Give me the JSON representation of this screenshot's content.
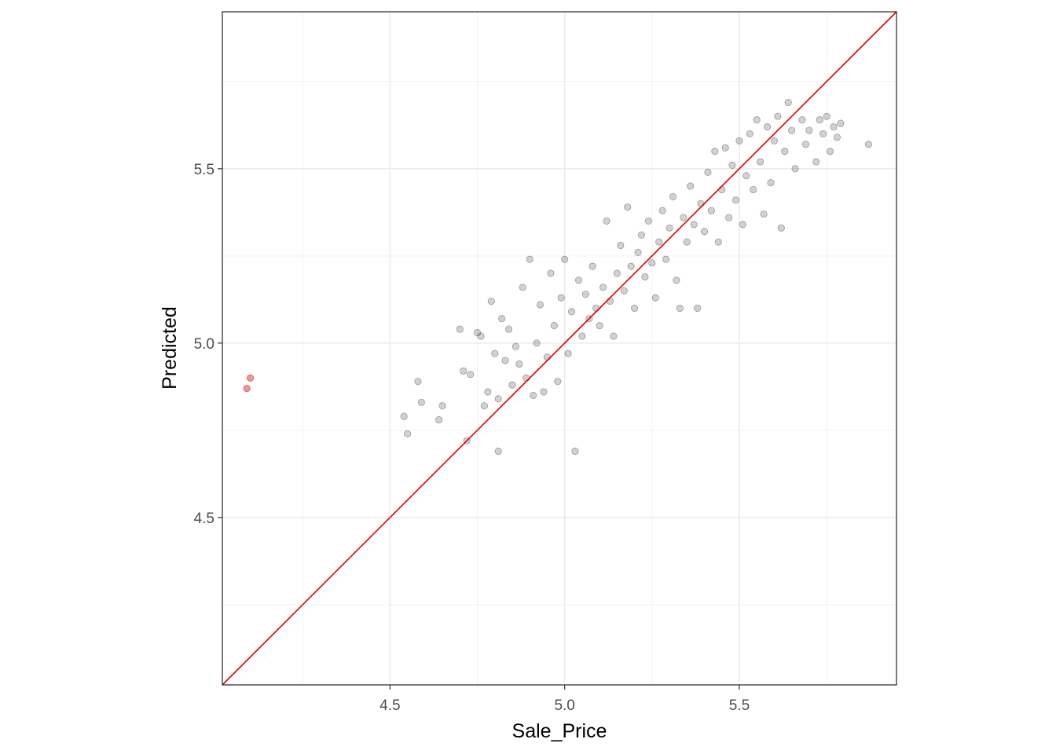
{
  "chart_data": {
    "type": "scatter",
    "title": "",
    "xlabel": "Sale_Price",
    "ylabel": "Predicted",
    "xlim": [
      4.02,
      5.95
    ],
    "ylim": [
      4.02,
      5.95
    ],
    "x_ticks": [
      4.5,
      5.0,
      5.5
    ],
    "x_tick_labels": [
      "4.5",
      "5.0",
      "5.5"
    ],
    "y_ticks": [
      4.5,
      5.0,
      5.5
    ],
    "y_tick_labels": [
      "4.5",
      "5.0",
      "5.5"
    ],
    "minor_grid": [
      4.25,
      4.75,
      5.25,
      5.75
    ],
    "grid": true,
    "legend": "none",
    "reference_line": {
      "from": [
        4.02,
        4.02
      ],
      "to": [
        5.95,
        5.95
      ],
      "color": "#e00000"
    },
    "series": [
      {
        "color": "#000000",
        "opacity": 0.18,
        "points": [
          [
            4.54,
            4.79
          ],
          [
            4.55,
            4.74
          ],
          [
            4.58,
            4.89
          ],
          [
            4.59,
            4.83
          ],
          [
            4.64,
            4.78
          ],
          [
            4.65,
            4.82
          ],
          [
            4.7,
            5.04
          ],
          [
            4.71,
            4.92
          ],
          [
            4.72,
            4.72
          ],
          [
            4.73,
            4.91
          ],
          [
            4.75,
            5.03
          ],
          [
            4.76,
            5.02
          ],
          [
            4.77,
            4.82
          ],
          [
            4.78,
            4.86
          ],
          [
            4.79,
            5.12
          ],
          [
            4.8,
            4.97
          ],
          [
            4.81,
            4.69
          ],
          [
            4.81,
            4.84
          ],
          [
            4.82,
            5.07
          ],
          [
            4.83,
            4.95
          ],
          [
            4.84,
            5.04
          ],
          [
            4.85,
            4.88
          ],
          [
            4.86,
            4.99
          ],
          [
            4.87,
            4.94
          ],
          [
            4.88,
            5.16
          ],
          [
            4.89,
            4.9
          ],
          [
            4.9,
            5.24
          ],
          [
            4.91,
            4.85
          ],
          [
            4.92,
            5.0
          ],
          [
            4.93,
            5.11
          ],
          [
            4.94,
            4.86
          ],
          [
            4.95,
            4.96
          ],
          [
            4.96,
            5.2
          ],
          [
            4.97,
            5.05
          ],
          [
            4.98,
            4.89
          ],
          [
            4.99,
            5.13
          ],
          [
            5.0,
            5.24
          ],
          [
            5.01,
            4.97
          ],
          [
            5.02,
            5.09
          ],
          [
            5.03,
            4.69
          ],
          [
            5.04,
            5.18
          ],
          [
            5.05,
            5.02
          ],
          [
            5.06,
            5.14
          ],
          [
            5.07,
            5.07
          ],
          [
            5.08,
            5.22
          ],
          [
            5.09,
            5.1
          ],
          [
            5.1,
            5.05
          ],
          [
            5.11,
            5.16
          ],
          [
            5.12,
            5.35
          ],
          [
            5.13,
            5.12
          ],
          [
            5.14,
            5.02
          ],
          [
            5.15,
            5.2
          ],
          [
            5.16,
            5.28
          ],
          [
            5.17,
            5.15
          ],
          [
            5.18,
            5.39
          ],
          [
            5.19,
            5.22
          ],
          [
            5.2,
            5.1
          ],
          [
            5.21,
            5.26
          ],
          [
            5.22,
            5.31
          ],
          [
            5.23,
            5.19
          ],
          [
            5.24,
            5.35
          ],
          [
            5.25,
            5.23
          ],
          [
            5.26,
            5.13
          ],
          [
            5.27,
            5.29
          ],
          [
            5.28,
            5.38
          ],
          [
            5.29,
            5.24
          ],
          [
            5.3,
            5.33
          ],
          [
            5.31,
            5.42
          ],
          [
            5.32,
            5.18
          ],
          [
            5.33,
            5.1
          ],
          [
            5.34,
            5.36
          ],
          [
            5.35,
            5.29
          ],
          [
            5.36,
            5.45
          ],
          [
            5.37,
            5.34
          ],
          [
            5.38,
            5.1
          ],
          [
            5.39,
            5.4
          ],
          [
            5.4,
            5.32
          ],
          [
            5.41,
            5.49
          ],
          [
            5.42,
            5.38
          ],
          [
            5.43,
            5.55
          ],
          [
            5.44,
            5.29
          ],
          [
            5.45,
            5.44
          ],
          [
            5.46,
            5.56
          ],
          [
            5.47,
            5.36
          ],
          [
            5.48,
            5.51
          ],
          [
            5.49,
            5.41
          ],
          [
            5.5,
            5.58
          ],
          [
            5.51,
            5.34
          ],
          [
            5.52,
            5.48
          ],
          [
            5.53,
            5.6
          ],
          [
            5.54,
            5.44
          ],
          [
            5.55,
            5.64
          ],
          [
            5.56,
            5.52
          ],
          [
            5.57,
            5.37
          ],
          [
            5.58,
            5.62
          ],
          [
            5.59,
            5.46
          ],
          [
            5.6,
            5.58
          ],
          [
            5.61,
            5.65
          ],
          [
            5.62,
            5.33
          ],
          [
            5.63,
            5.55
          ],
          [
            5.64,
            5.69
          ],
          [
            5.65,
            5.61
          ],
          [
            5.66,
            5.5
          ],
          [
            5.68,
            5.64
          ],
          [
            5.69,
            5.57
          ],
          [
            5.7,
            5.61
          ],
          [
            5.72,
            5.52
          ],
          [
            5.73,
            5.64
          ],
          [
            5.74,
            5.6
          ],
          [
            5.75,
            5.65
          ],
          [
            5.76,
            5.55
          ],
          [
            5.77,
            5.62
          ],
          [
            5.78,
            5.59
          ],
          [
            5.79,
            5.63
          ],
          [
            5.87,
            5.57
          ]
        ]
      },
      {
        "color": "#d7191c",
        "opacity": 0.45,
        "points": [
          [
            4.09,
            4.87
          ],
          [
            4.1,
            4.9
          ]
        ]
      }
    ]
  }
}
